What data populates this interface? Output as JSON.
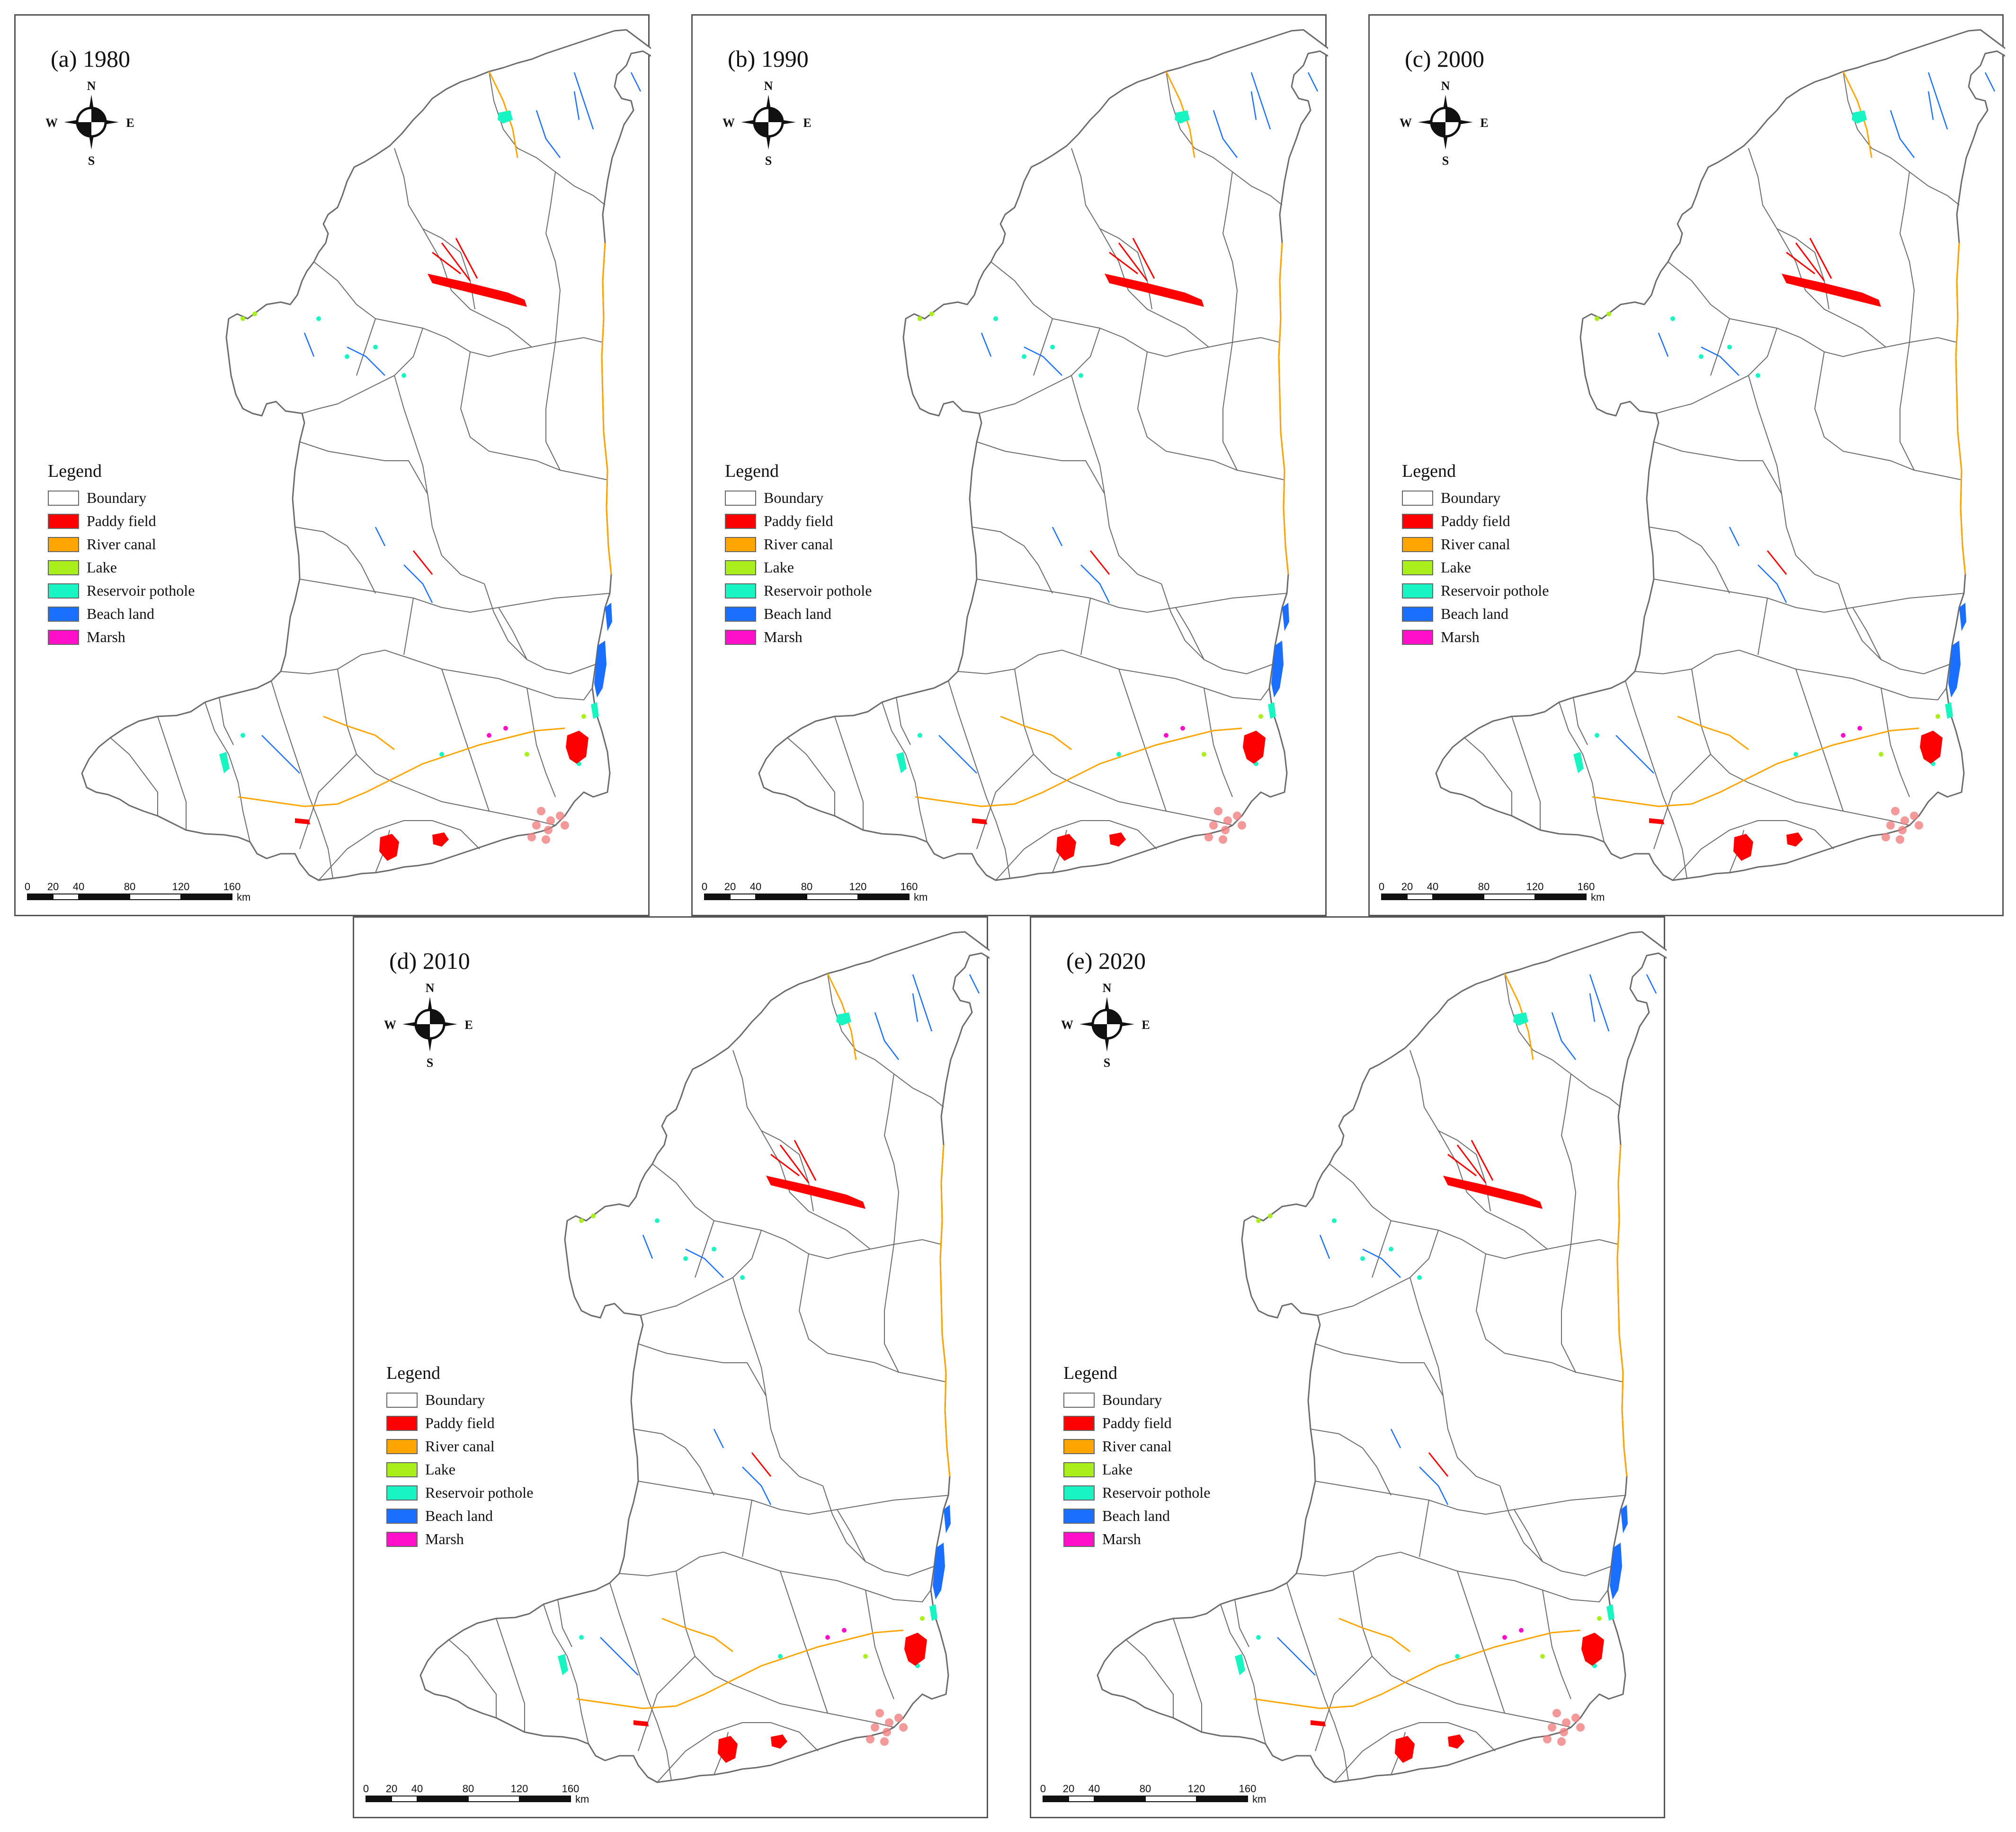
{
  "colors": {
    "paddy": "#ff0000",
    "river": "#ffa500",
    "lake": "#a8ef1c",
    "reservoir": "#19f5c2",
    "beach": "#1a6fff",
    "marsh": "#ff0fc8",
    "boundary": "#6b6b6b"
  },
  "legend": {
    "title": "Legend",
    "items": [
      {
        "label": "Boundary",
        "color": "#ffffff"
      },
      {
        "label": "Paddy field",
        "color": "#ff0000"
      },
      {
        "label": "River canal",
        "color": "#ffa500"
      },
      {
        "label": "Lake",
        "color": "#a8ef1c"
      },
      {
        "label": "Reservoir pothole",
        "color": "#19f5c2"
      },
      {
        "label": "Beach land",
        "color": "#1a6fff"
      },
      {
        "label": "Marsh",
        "color": "#ff0fc8"
      }
    ]
  },
  "compass": {
    "n": "N",
    "s": "S",
    "e": "E",
    "w": "W"
  },
  "scale_bar": {
    "ticks": [
      "0",
      "20",
      "40",
      "80",
      "120",
      "160"
    ],
    "unit": "km"
  },
  "panels": [
    {
      "title": "(a) 1980"
    },
    {
      "title": "(b) 1990"
    },
    {
      "title": "(c) 2000"
    },
    {
      "title": "(d) 2010"
    },
    {
      "title": "(e) 2020"
    }
  ]
}
